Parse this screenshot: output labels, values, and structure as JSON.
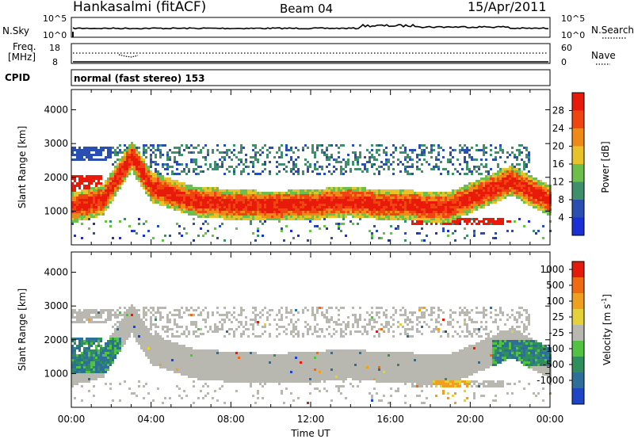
{
  "header": {
    "station": "Hankasalmi (fitACF)",
    "beam": "Beam 04",
    "date": "15/Apr/2011"
  },
  "noise_panel": {
    "left_label": "N.Sky",
    "left_ticks": [
      "10^5",
      "10^0"
    ],
    "right_ticks": [
      "10^5",
      "10^0"
    ],
    "right_label": "N.Search"
  },
  "freq_panel": {
    "label_line1": "Freq.",
    "label_line2": "[MHz]",
    "left_ticks": [
      "18",
      "8"
    ],
    "right_ticks": [
      "60",
      "0"
    ],
    "right_label": "Nave"
  },
  "cpid_panel": {
    "label": "CPID",
    "mode_text": "normal (fast stereo) 153"
  },
  "colors": {
    "power": [
      "#1a2fd6",
      "#2a4fb0",
      "#3f8f6a",
      "#6cbf4a",
      "#e9c22a",
      "#f08a17",
      "#f04510",
      "#e81a0a"
    ],
    "velocity": [
      "#1e44c8",
      "#2d6f9a",
      "#2e8f5c",
      "#52c242",
      "#b8b8b0",
      "#e5d23a",
      "#f0a020",
      "#ef6a10",
      "#e41a0a"
    ]
  },
  "chart_data": [
    {
      "type": "heatmap",
      "panel": "power",
      "xlabel": "Time UT",
      "x_ticks": [
        "00:00",
        "04:00",
        "08:00",
        "12:00",
        "16:00",
        "20:00",
        "00:00"
      ],
      "ylabel": "Slant Range [km]",
      "y_ticks": [
        "1000",
        "2000",
        "3000",
        "4000"
      ],
      "ylim": [
        0,
        4600
      ],
      "xlim_hours": [
        0,
        24
      ],
      "colorbar": {
        "label": "Power [dB]",
        "ticks": [
          "4",
          "8",
          "12",
          "16",
          "20",
          "24",
          "28"
        ],
        "range": [
          0,
          32
        ]
      }
    },
    {
      "type": "heatmap",
      "panel": "velocity",
      "xlabel": "Time UT",
      "x_ticks": [
        "00:00",
        "04:00",
        "08:00",
        "12:00",
        "16:00",
        "20:00",
        "00:00"
      ],
      "ylabel": "Slant Range [km]",
      "y_ticks": [
        "1000",
        "2000",
        "3000",
        "4000"
      ],
      "ylim": [
        0,
        4600
      ],
      "xlim_hours": [
        0,
        24
      ],
      "colorbar": {
        "label": "Velocity [m s",
        "label_sup": "-1",
        "label_close": "]",
        "ticks": [
          "1000",
          "500",
          "100",
          "25",
          "-25",
          "-100",
          "-500",
          "-1000"
        ]
      }
    }
  ]
}
